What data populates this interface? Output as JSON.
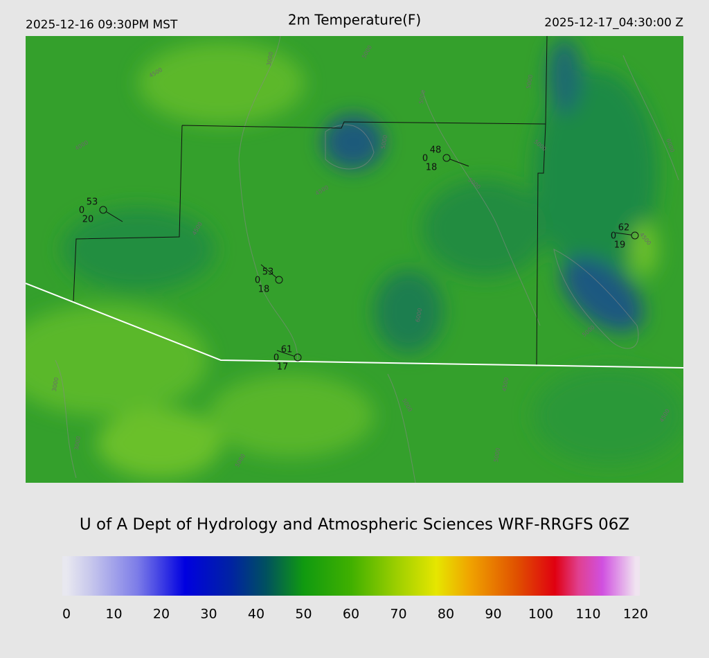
{
  "header": {
    "left": "2025-12-16 09:30PM MST",
    "title": "2m Temperature(F)",
    "right": "2025-12-17_04:30:00 Z"
  },
  "stations": [
    {
      "temperature": 53,
      "pressure": 0,
      "dewpoint": 20
    },
    {
      "temperature": 48,
      "pressure": 0,
      "dewpoint": 18
    },
    {
      "temperature": 62,
      "pressure": 0,
      "dewpoint": 19
    },
    {
      "temperature": 53,
      "pressure": 0,
      "dewpoint": 18
    },
    {
      "temperature": 61,
      "pressure": 0,
      "dewpoint": 17
    }
  ],
  "contour_labels": [
    3000,
    5000,
    4500,
    5000,
    5000,
    4500,
    5000,
    4000,
    4500,
    6000,
    5000,
    4500,
    5000,
    6000,
    5000,
    4500,
    3000,
    3000,
    5000,
    5000,
    5000,
    4500
  ],
  "credit": "U of A Dept of Hydrology and Atmospheric Sciences WRF-RRGFS 06Z",
  "colorbar": {
    "range": [
      0,
      120
    ],
    "ticks": [
      0,
      10,
      20,
      30,
      40,
      50,
      60,
      70,
      80,
      90,
      100,
      110,
      120
    ],
    "stops": [
      {
        "value": 0,
        "color": "#e8e8f0"
      },
      {
        "value": 5,
        "color": "#c8c8ec"
      },
      {
        "value": 15,
        "color": "#7c7ce8"
      },
      {
        "value": 25,
        "color": "#0000e0"
      },
      {
        "value": 35,
        "color": "#0024a0"
      },
      {
        "value": 42,
        "color": "#005060"
      },
      {
        "value": 50,
        "color": "#109a10"
      },
      {
        "value": 60,
        "color": "#40b000"
      },
      {
        "value": 70,
        "color": "#a0d000"
      },
      {
        "value": 78,
        "color": "#e6e600"
      },
      {
        "value": 85,
        "color": "#f0a400"
      },
      {
        "value": 95,
        "color": "#e05000"
      },
      {
        "value": 103,
        "color": "#e00010"
      },
      {
        "value": 108,
        "color": "#e04090"
      },
      {
        "value": 113,
        "color": "#d050e0"
      },
      {
        "value": 120,
        "color": "#f0e4f0"
      }
    ]
  }
}
